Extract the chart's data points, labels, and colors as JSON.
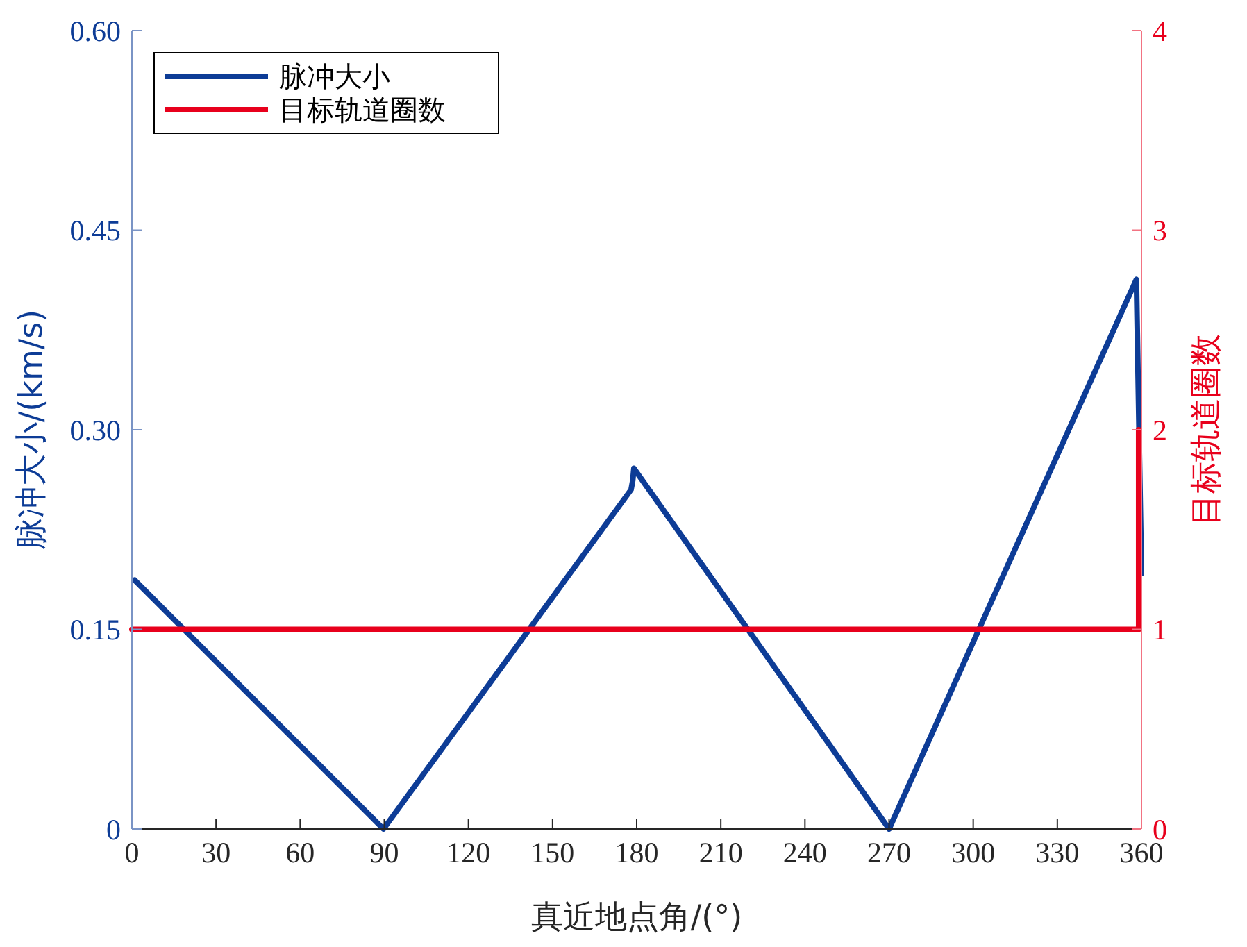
{
  "chart_data": {
    "type": "line",
    "xlabel": "真近地点角/(°)",
    "ylabel": "脉冲大小/(km/s)",
    "y2label": "目标轨道圈数",
    "xlim": [
      0,
      360
    ],
    "xticks": [
      0,
      30,
      60,
      90,
      120,
      150,
      180,
      210,
      240,
      270,
      300,
      330,
      360
    ],
    "ylim": [
      0,
      0.6
    ],
    "yticks": [
      0,
      0.15,
      {
        "value": 0.3,
        "label": "0.30"
      },
      0.45,
      {
        "value": 0.6,
        "label": "0.60"
      }
    ],
    "y2lim": [
      0,
      4
    ],
    "y2ticks": [
      0,
      1,
      2,
      3,
      4
    ],
    "legend": "top left",
    "grid": false,
    "series": [
      {
        "name": "脉冲大小",
        "color": "#0d3c96",
        "x": [
          1,
          89.7,
          178,
          178.6,
          179,
          270,
          358.2,
          360
        ],
        "values": [
          0.187,
          0,
          0.255,
          0.262,
          0.271,
          0,
          0.413,
          0.192
        ]
      },
      {
        "name": "目标轨道圈数",
        "color": "#e8001c",
        "axis": "y2",
        "x": [
          0,
          359,
          359
        ],
        "values": [
          1,
          1,
          2
        ]
      }
    ]
  }
}
